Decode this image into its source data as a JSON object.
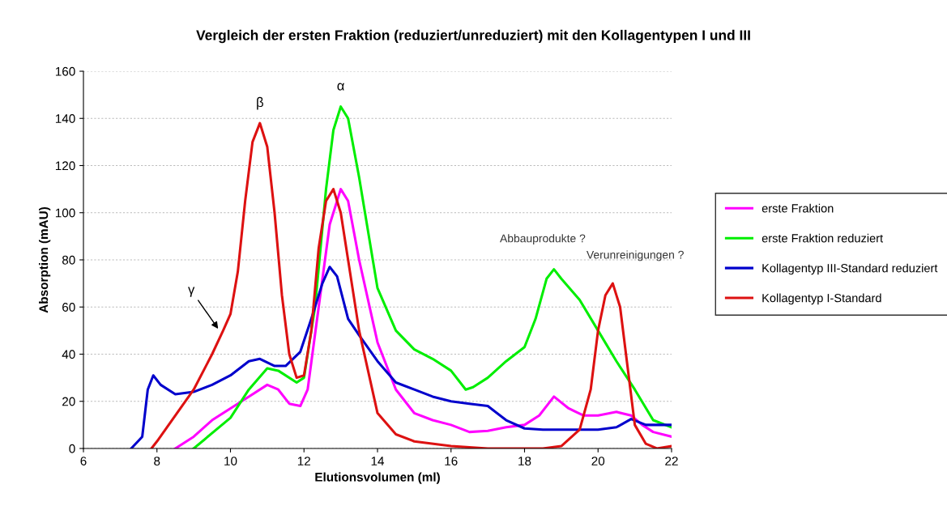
{
  "chart_data": {
    "type": "line",
    "title": "Vergleich der ersten Fraktion (reduziert/unreduziert) mit den Kollagentypen I und III",
    "xlabel": "Elutionsvolumen (ml)",
    "ylabel": "Absorption (mAU)",
    "xlim": [
      6,
      22
    ],
    "xticks": [
      6,
      8,
      10,
      12,
      14,
      16,
      18,
      20,
      22
    ],
    "ylim": [
      0,
      160
    ],
    "yticks": [
      0,
      20,
      40,
      60,
      80,
      100,
      120,
      140,
      160
    ],
    "grid": "y",
    "legend": "right",
    "marker": "none",
    "line_style": "solid",
    "series": [
      {
        "name": "erste Fraktion",
        "color": "#ff00ff",
        "x": [
          8.5,
          9,
          9.5,
          10,
          10.5,
          11,
          11.3,
          11.6,
          11.9,
          12.1,
          12.4,
          12.7,
          13,
          13.2,
          13.5,
          14,
          14.5,
          15,
          15.5,
          16,
          16.5,
          17,
          17.5,
          18,
          18.4,
          18.8,
          19.2,
          19.6,
          20,
          20.5,
          20.9,
          21.2,
          21.5,
          22
        ],
        "values": [
          0,
          5,
          12,
          17,
          22,
          27,
          25,
          19,
          18,
          25,
          60,
          95,
          110,
          105,
          80,
          45,
          25,
          15,
          12,
          10,
          7,
          7.5,
          9,
          10,
          14,
          22,
          17,
          14,
          14,
          15.5,
          14,
          10,
          7,
          5
        ]
      },
      {
        "name": "erste Fraktion reduziert",
        "color": "#00ee00",
        "x": [
          9,
          10,
          10.5,
          11,
          11.3,
          11.8,
          12,
          12.3,
          12.6,
          12.8,
          13,
          13.2,
          13.5,
          14,
          14.5,
          15,
          15.5,
          16,
          16.4,
          16.6,
          17,
          17.5,
          18,
          18.3,
          18.6,
          18.8,
          19,
          19.5,
          20,
          20.5,
          21,
          21.5,
          22
        ],
        "values": [
          0,
          13,
          25,
          34,
          33,
          28,
          30,
          60,
          110,
          135,
          145,
          140,
          115,
          68,
          50,
          42,
          38,
          33,
          25,
          26,
          30,
          37,
          43,
          55,
          72,
          76,
          72,
          63,
          50,
          37,
          25,
          12,
          9
        ]
      },
      {
        "name": "Kollagentyp III-Standard reduziert",
        "color": "#0000cc",
        "x": [
          7.3,
          7.6,
          7.75,
          7.9,
          8.1,
          8.5,
          9,
          9.5,
          10,
          10.5,
          10.8,
          11.2,
          11.5,
          11.9,
          12.2,
          12.5,
          12.7,
          12.9,
          13.2,
          13.5,
          14,
          14.5,
          15,
          15.5,
          16,
          16.5,
          17,
          17.5,
          18,
          18.5,
          19,
          20,
          20.5,
          20.9,
          21.3,
          22
        ],
        "values": [
          0,
          5,
          25,
          31,
          27,
          23,
          24,
          27,
          31,
          37,
          38,
          35,
          35,
          41,
          55,
          70,
          77,
          73,
          55,
          48,
          37,
          28,
          25,
          22,
          20,
          19,
          18,
          12,
          8.5,
          8,
          8,
          8,
          9,
          12.5,
          10,
          10
        ]
      },
      {
        "name": "Kollagentyp I-Standard",
        "color": "#dd1111",
        "x": [
          7.85,
          8,
          9,
          9.5,
          9.8,
          10,
          10.2,
          10.4,
          10.6,
          10.8,
          11,
          11.2,
          11.4,
          11.6,
          11.8,
          12,
          12.2,
          12.4,
          12.6,
          12.8,
          13,
          13.2,
          13.5,
          14,
          14.5,
          15,
          16,
          17,
          18.5,
          19,
          19.5,
          19.8,
          20,
          20.2,
          20.4,
          20.6,
          20.8,
          21,
          21.3,
          21.6,
          22
        ],
        "values": [
          0,
          3,
          25,
          40,
          50,
          57,
          75,
          105,
          130,
          138,
          128,
          100,
          65,
          40,
          30,
          31,
          50,
          85,
          105,
          110,
          100,
          80,
          50,
          15,
          6,
          3,
          1,
          0,
          0,
          1,
          8,
          25,
          50,
          65,
          70,
          60,
          35,
          10,
          2,
          0,
          1
        ]
      }
    ],
    "annotations": [
      {
        "text": "β",
        "x": 10.8,
        "y": 138
      },
      {
        "text": "α",
        "x": 13,
        "y": 145
      },
      {
        "text": "γ",
        "x": 9.7,
        "y": 50
      },
      {
        "text": "Abbauprodukte ?",
        "x": 18.8,
        "y": 76
      },
      {
        "text": "Verunreinigungen ?",
        "x": 20.4,
        "y": 70
      }
    ]
  }
}
